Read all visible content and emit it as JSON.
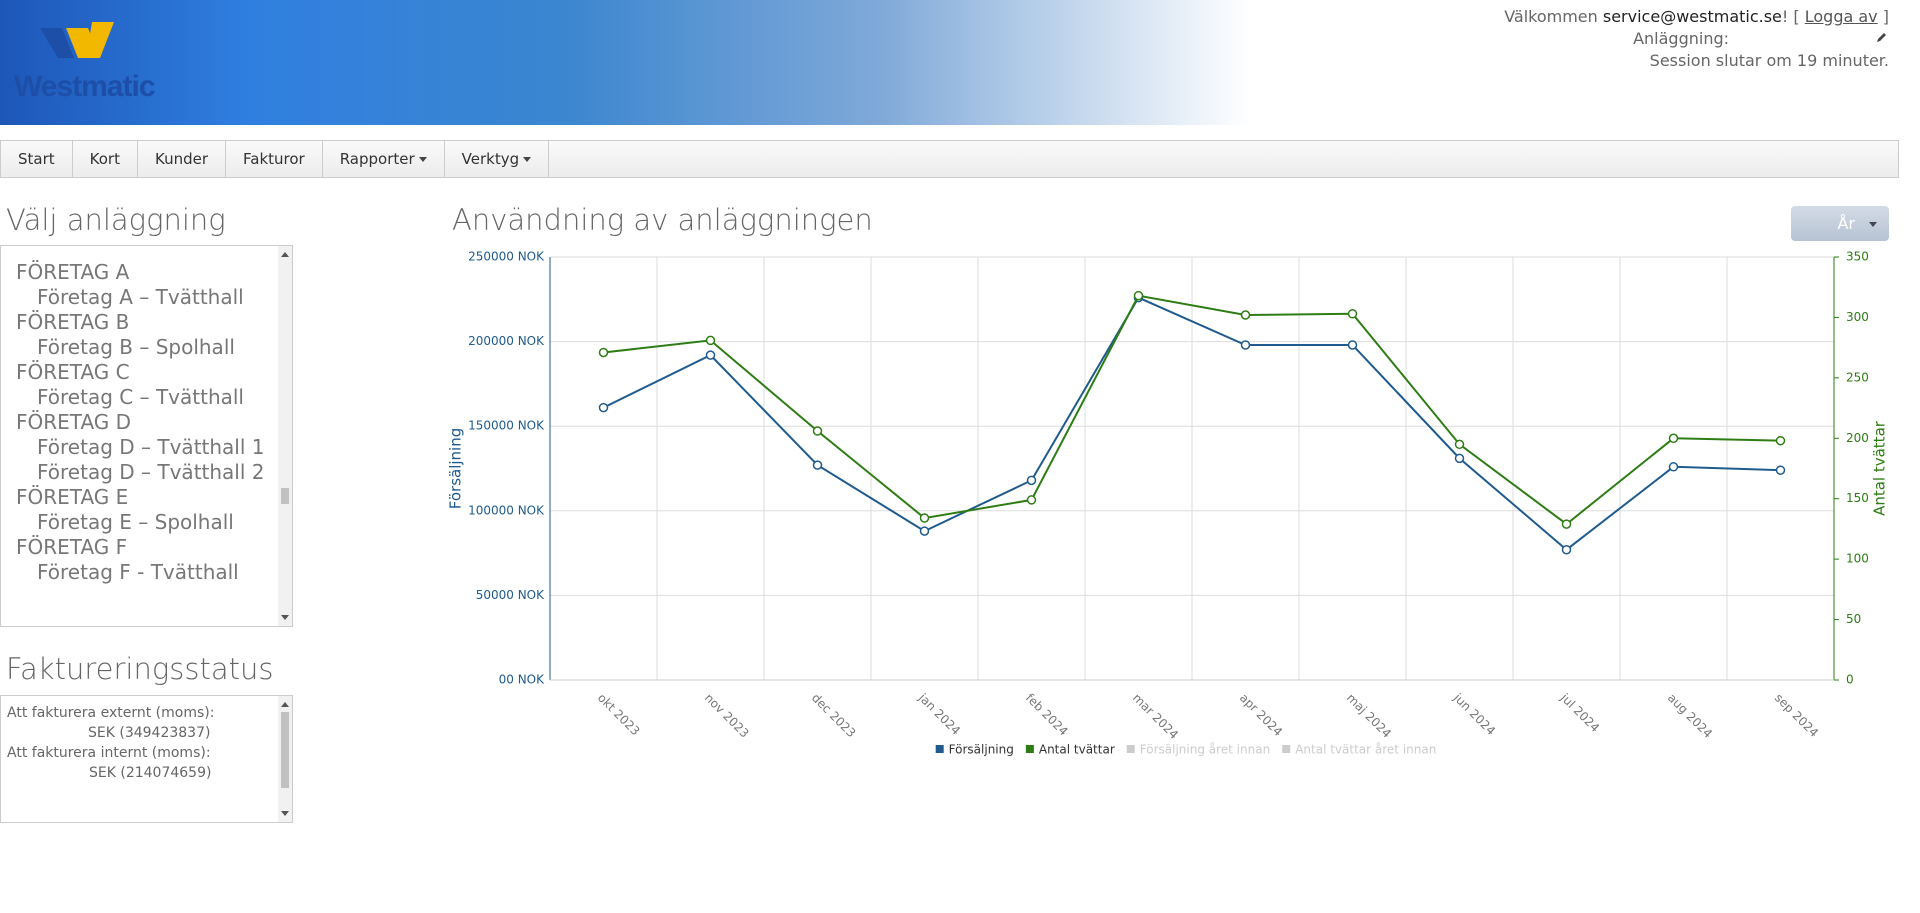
{
  "header": {
    "logo": "Westmatic",
    "welcome": "Välkommen",
    "user": "service@westmatic.se",
    "punct_open": "! [",
    "logout": "Logga av",
    "punct_close": "]",
    "facility_label": "Anläggning:",
    "session": "Session slutar om 19 minuter."
  },
  "nav": [
    "Start",
    "Kort",
    "Kunder",
    "Fakturor",
    "Rapporter",
    "Verktyg"
  ],
  "nav_dropdowns": [
    false,
    false,
    false,
    false,
    true,
    true
  ],
  "facilities": {
    "title": "Välj anläggning",
    "items": [
      {
        "label": "FÖRETAG A",
        "level": 0
      },
      {
        "label": "Företag A – Tvätthall",
        "level": 1
      },
      {
        "label": "FÖRETAG B",
        "level": 0
      },
      {
        "label": "Företag B – Spolhall",
        "level": 1
      },
      {
        "label": "FÖRETAG C",
        "level": 0
      },
      {
        "label": "Företag C – Tvätthall",
        "level": 1
      },
      {
        "label": "FÖRETAG D",
        "level": 0
      },
      {
        "label": "Företag D – Tvätthall 1",
        "level": 1
      },
      {
        "label": "Företag D – Tvätthall 2",
        "level": 1
      },
      {
        "label": "FÖRETAG E",
        "level": 0
      },
      {
        "label": "Företag E – Spolhall",
        "level": 1
      },
      {
        "label": "FÖRETAG F",
        "level": 0
      },
      {
        "label": "Företag F - Tvätthall",
        "level": 1
      }
    ]
  },
  "billing": {
    "title": "Faktureringsstatus",
    "items": [
      {
        "label": "Att fakturera externt (moms):",
        "level": 0
      },
      {
        "label": "SEK (349423837)",
        "level": 1
      },
      {
        "label": "Att fakturera internt (moms):",
        "level": 0
      },
      {
        "label": "SEK (214074659)",
        "level": 1
      }
    ]
  },
  "chart_title": "Användning av anläggningen",
  "period_button": "År",
  "chart_data": {
    "type": "line",
    "categories": [
      "okt 2023",
      "nov 2023",
      "dec 2023",
      "jan 2024",
      "feb 2024",
      "mar 2024",
      "apr 2024",
      "maj 2024",
      "jun 2024",
      "jul 2024",
      "aug 2024",
      "sep 2024"
    ],
    "series": [
      {
        "name": "Försäljning",
        "color": "#1f5b8e",
        "values": [
          161000,
          192000,
          127000,
          88000,
          118000,
          226000,
          198000,
          198000,
          131000,
          77000,
          126000,
          124000
        ]
      },
      {
        "name": "Antal tvättar",
        "color": "#2e7d14",
        "axis": "y2",
        "values": [
          271,
          281,
          206,
          134,
          149,
          318,
          302,
          303,
          195,
          129,
          200,
          198
        ]
      }
    ],
    "hidden_series": [
      {
        "name": "Försäljning året innan",
        "color": "#cccccc"
      },
      {
        "name": "Antal tvättar året innan",
        "color": "#cccccc"
      }
    ],
    "ylabel": "Försäljning",
    "y2label": "Antal tvättar",
    "ylim": [
      0,
      250000
    ],
    "yticks": [
      {
        "value": 0,
        "label": "00 NOK"
      },
      {
        "value": 50000,
        "label": "50000 NOK"
      },
      {
        "value": 100000,
        "label": "100000 NOK"
      },
      {
        "value": 150000,
        "label": "150000 NOK"
      },
      {
        "value": 200000,
        "label": "200000 NOK"
      },
      {
        "value": 250000,
        "label": "250000 NOK"
      }
    ],
    "y2lim": [
      0,
      350
    ],
    "y2ticks": [
      0,
      50,
      100,
      150,
      200,
      250,
      300,
      350
    ],
    "grid": true
  }
}
